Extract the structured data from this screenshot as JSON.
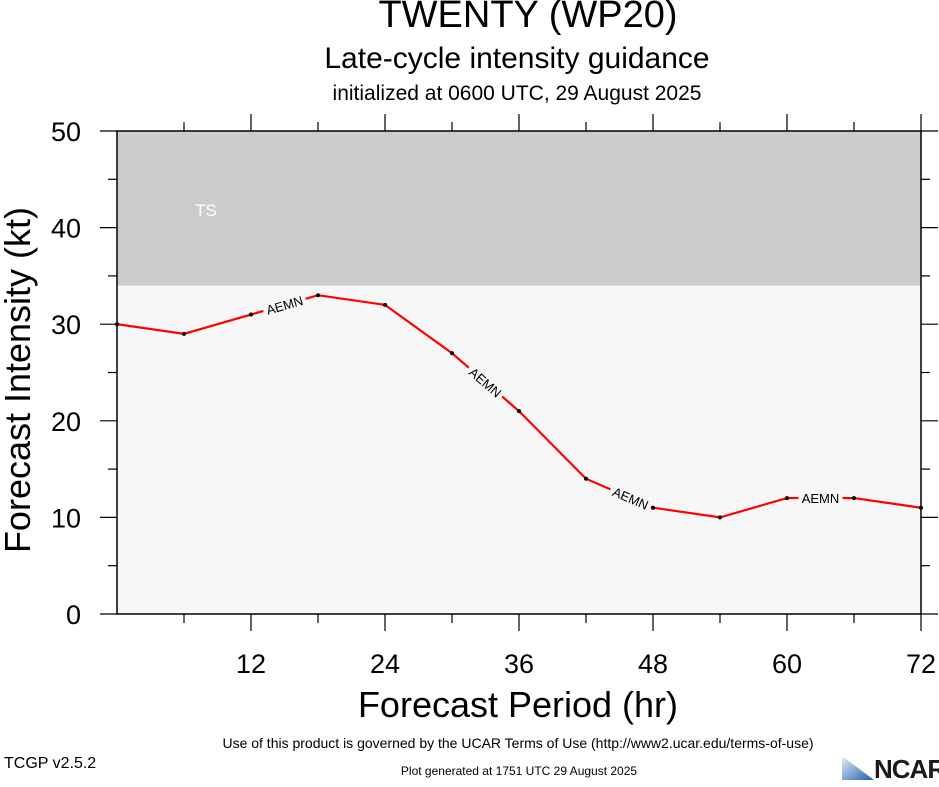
{
  "header": {
    "title": "TWENTY (WP20)",
    "subtitle": "Late-cycle intensity guidance",
    "initialized": "initialized at 0600 UTC, 29 August 2025"
  },
  "footer": {
    "terms": "Use of this product is governed by the UCAR Terms of Use (http://www2.ucar.edu/terms-of-use)",
    "version": "TCGP v2.5.2",
    "generated": "Plot generated at 1751 UTC   29 August 2025",
    "logo_text": "NCAR"
  },
  "chart_data": {
    "type": "line",
    "xlabel": "Forecast Period (hr)",
    "ylabel": "Forecast Intensity (kt)",
    "xlim": [
      0,
      72
    ],
    "ylim": [
      0,
      50
    ],
    "x_ticks": [
      12,
      24,
      36,
      48,
      60,
      72
    ],
    "y_ticks": [
      0,
      10,
      20,
      30,
      40,
      50
    ],
    "bands": [
      {
        "label": "TS",
        "from": 34,
        "to": 50,
        "color": "#cccccc"
      }
    ],
    "background_color": "#f7f7f7",
    "series": [
      {
        "name": "AEMN",
        "color": "#ff0000",
        "x": [
          0,
          6,
          12,
          18,
          24,
          30,
          36,
          42,
          48,
          54,
          60,
          66,
          72
        ],
        "values": [
          30,
          29,
          31,
          33,
          32,
          27,
          21,
          14,
          11,
          10,
          12,
          12,
          11
        ],
        "label_positions": [
          15,
          33,
          46,
          63
        ]
      }
    ]
  }
}
